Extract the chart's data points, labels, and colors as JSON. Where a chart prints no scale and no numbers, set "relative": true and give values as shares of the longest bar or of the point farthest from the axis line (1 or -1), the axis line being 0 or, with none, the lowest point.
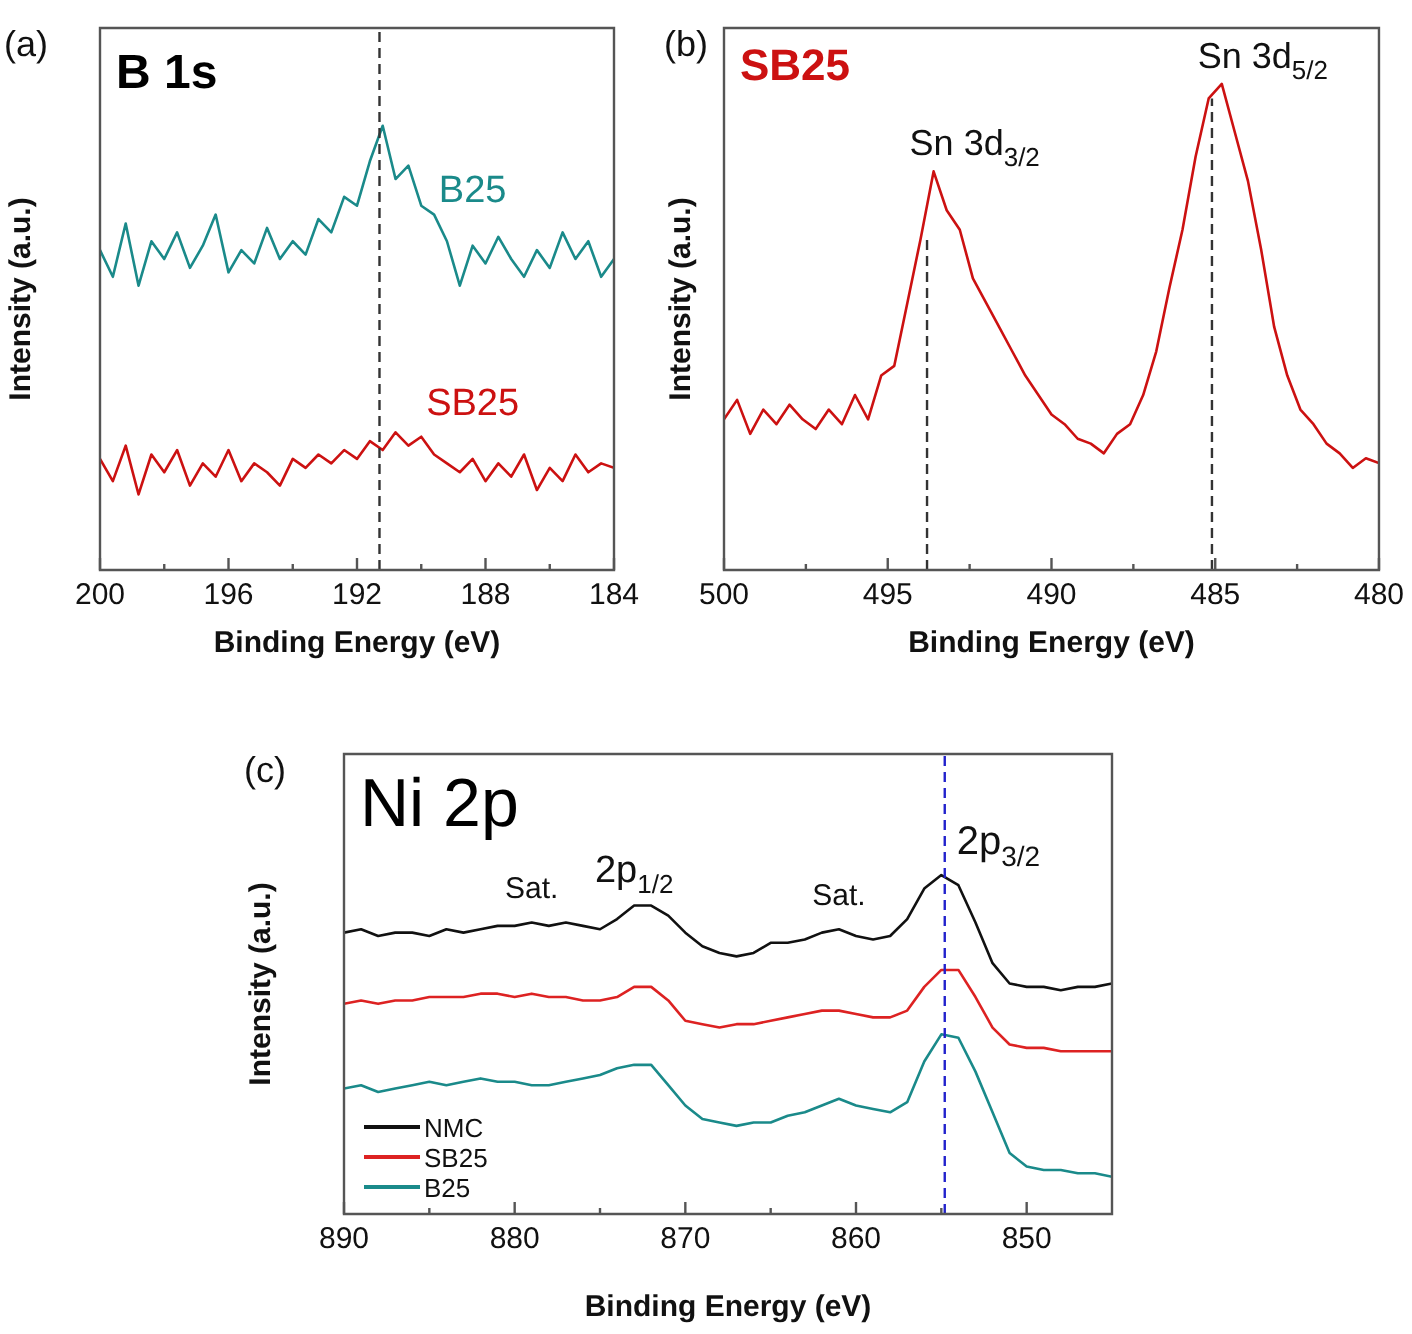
{
  "chart_data": [
    {
      "type": "line",
      "relative": true,
      "title": "B 1s",
      "xlabel": "Binding Energy (eV)",
      "ylabel": "Intensity (a.u.)",
      "annotations": [
        "(a)"
      ],
      "x": [
        200,
        199.6,
        199.2,
        198.8,
        198.4,
        198,
        197.6,
        197.2,
        196.8,
        196.4,
        196,
        195.6,
        195.2,
        194.8,
        194.4,
        194,
        193.6,
        193.2,
        192.8,
        192.4,
        192,
        191.6,
        191.2,
        190.8,
        190.4,
        190,
        189.6,
        189.2,
        188.8,
        188.4,
        188,
        187.6,
        187.2,
        186.8,
        186.4,
        186,
        185.6,
        185.2,
        184.8,
        184.4,
        184
      ],
      "series": [
        {
          "name": "B25",
          "color": "#1a8a8a",
          "values": [
            0.72,
            0.66,
            0.78,
            0.64,
            0.74,
            0.7,
            0.76,
            0.68,
            0.73,
            0.8,
            0.67,
            0.72,
            0.69,
            0.77,
            0.7,
            0.74,
            0.71,
            0.79,
            0.76,
            0.84,
            0.82,
            0.92,
            1.0,
            0.88,
            0.91,
            0.82,
            0.8,
            0.74,
            0.64,
            0.73,
            0.69,
            0.75,
            0.7,
            0.66,
            0.72,
            0.68,
            0.76,
            0.7,
            0.74,
            0.66,
            0.7
          ]
        },
        {
          "name": "SB25",
          "color": "#cc1111",
          "values": [
            0.25,
            0.2,
            0.28,
            0.17,
            0.26,
            0.22,
            0.27,
            0.19,
            0.24,
            0.21,
            0.27,
            0.2,
            0.24,
            0.22,
            0.19,
            0.25,
            0.23,
            0.26,
            0.24,
            0.27,
            0.25,
            0.29,
            0.27,
            0.31,
            0.28,
            0.3,
            0.26,
            0.24,
            0.22,
            0.25,
            0.2,
            0.24,
            0.21,
            0.26,
            0.18,
            0.23,
            0.2,
            0.26,
            0.22,
            0.24,
            0.23
          ]
        }
      ],
      "xlim": [
        200,
        184
      ],
      "xticks": [
        200,
        {
          "value": 198,
          "label": null
        },
        196,
        {
          "value": 194,
          "label": null
        },
        192,
        {
          "value": 190,
          "label": null
        },
        188,
        {
          "value": 186,
          "label": null
        },
        184
      ],
      "ref_lines": [
        {
          "axis": "x",
          "value": 191.3,
          "color": "#333333",
          "line_style": "dashed"
        }
      ]
    },
    {
      "type": "line",
      "relative": true,
      "title": "SB25",
      "xlabel": "Binding Energy (eV)",
      "ylabel": "Intensity (a.u.)",
      "annotations": [
        "(b)",
        {
          "text": "Sn 3d$_{3/2}$",
          "x": 493.6,
          "y": 0.82
        },
        {
          "text": "Sn 3d$_{5/2}$",
          "x": 484.8,
          "y": 1.0
        }
      ],
      "x": [
        500,
        499.6,
        499.2,
        498.8,
        498.4,
        498,
        497.6,
        497.2,
        496.8,
        496.4,
        496,
        495.6,
        495.2,
        494.8,
        494.4,
        494,
        493.6,
        493.2,
        492.8,
        492.4,
        492,
        491.6,
        491.2,
        490.8,
        490.4,
        490,
        489.6,
        489.2,
        488.8,
        488.4,
        488,
        487.6,
        487.2,
        486.8,
        486.4,
        486,
        485.6,
        485.2,
        484.8,
        484.4,
        484,
        483.6,
        483.2,
        482.8,
        482.4,
        482,
        481.6,
        481.2,
        480.8,
        480.4,
        480
      ],
      "series": [
        {
          "color": "#cc1111",
          "values": [
            0.31,
            0.35,
            0.28,
            0.33,
            0.3,
            0.34,
            0.31,
            0.29,
            0.33,
            0.3,
            0.36,
            0.31,
            0.4,
            0.42,
            0.55,
            0.68,
            0.82,
            0.74,
            0.7,
            0.6,
            0.55,
            0.5,
            0.45,
            0.4,
            0.36,
            0.32,
            0.3,
            0.27,
            0.26,
            0.24,
            0.28,
            0.3,
            0.36,
            0.45,
            0.58,
            0.7,
            0.85,
            0.97,
            1.0,
            0.9,
            0.8,
            0.66,
            0.5,
            0.4,
            0.33,
            0.3,
            0.26,
            0.24,
            0.21,
            0.23,
            0.22
          ]
        }
      ],
      "xlim": [
        500,
        480
      ],
      "xticks": [
        500,
        {
          "value": 497.5,
          "label": null
        },
        495,
        {
          "value": 492.5,
          "label": null
        },
        490,
        {
          "value": 487.5,
          "label": null
        },
        485,
        {
          "value": 482.5,
          "label": null
        },
        480
      ],
      "ref_lines": [
        {
          "axis": "x",
          "value": 493.8,
          "color": "#333333",
          "line_style": "dashed"
        },
        {
          "axis": "x",
          "value": 485.1,
          "color": "#333333",
          "line_style": "dashed"
        }
      ]
    },
    {
      "type": "line",
      "relative": true,
      "title": "Ni 2p",
      "xlabel": "Binding Energy (eV)",
      "ylabel": "Intensity (a.u.)",
      "legend": "bottom left",
      "annotations": [
        "(c)",
        {
          "text": "Sat.",
          "x": 879,
          "y": 0.86
        },
        {
          "text": "2p$_{1/2}$",
          "x": 873,
          "y": 0.91
        },
        {
          "text": "Sat.",
          "x": 861,
          "y": 0.84
        }
      ],
      "x": [
        890,
        889,
        888,
        887,
        886,
        885,
        884,
        883,
        882,
        881,
        880,
        879,
        878,
        877,
        876,
        875,
        874,
        873,
        872,
        871,
        870,
        869,
        868,
        867,
        866,
        865,
        864,
        863,
        862,
        861,
        860,
        859,
        858,
        857,
        856,
        855,
        854,
        853,
        852,
        851,
        850,
        849,
        848,
        847,
        846,
        845
      ],
      "series": [
        {
          "name": "NMC",
          "color": "#111111",
          "values": [
            0.83,
            0.84,
            0.82,
            0.83,
            0.83,
            0.82,
            0.84,
            0.83,
            0.84,
            0.85,
            0.85,
            0.86,
            0.85,
            0.86,
            0.85,
            0.84,
            0.87,
            0.91,
            0.91,
            0.88,
            0.83,
            0.79,
            0.77,
            0.76,
            0.77,
            0.8,
            0.8,
            0.81,
            0.83,
            0.84,
            0.82,
            0.81,
            0.82,
            0.87,
            0.96,
            1.0,
            0.97,
            0.86,
            0.74,
            0.68,
            0.67,
            0.67,
            0.66,
            0.67,
            0.67,
            0.68
          ]
        },
        {
          "name": "SB25",
          "color": "#dd2222",
          "values": [
            0.62,
            0.63,
            0.62,
            0.63,
            0.63,
            0.64,
            0.64,
            0.64,
            0.65,
            0.65,
            0.64,
            0.65,
            0.64,
            0.64,
            0.63,
            0.63,
            0.64,
            0.67,
            0.67,
            0.63,
            0.57,
            0.56,
            0.55,
            0.56,
            0.56,
            0.57,
            0.58,
            0.59,
            0.6,
            0.6,
            0.59,
            0.58,
            0.58,
            0.6,
            0.67,
            0.72,
            0.72,
            0.64,
            0.55,
            0.5,
            0.49,
            0.49,
            0.48,
            0.48,
            0.48,
            0.48
          ]
        },
        {
          "name": "B25",
          "color": "#1a8a8a",
          "values": [
            0.37,
            0.38,
            0.36,
            0.37,
            0.38,
            0.39,
            0.38,
            0.39,
            0.4,
            0.39,
            0.39,
            0.38,
            0.38,
            0.39,
            0.4,
            0.41,
            0.43,
            0.44,
            0.44,
            0.38,
            0.32,
            0.28,
            0.27,
            0.26,
            0.27,
            0.27,
            0.29,
            0.3,
            0.32,
            0.34,
            0.32,
            0.31,
            0.3,
            0.33,
            0.45,
            0.53,
            0.52,
            0.42,
            0.3,
            0.18,
            0.14,
            0.13,
            0.13,
            0.12,
            0.12,
            0.11
          ]
        }
      ],
      "xlim": [
        890,
        845
      ],
      "xticks": [
        890,
        {
          "value": 885,
          "label": null
        },
        880,
        {
          "value": 875,
          "label": null
        },
        870,
        {
          "value": 865,
          "label": null
        },
        860,
        {
          "value": 855,
          "label": null
        },
        850
      ],
      "ref_lines": [
        {
          "axis": "x",
          "value": 854.8,
          "label": "2p$_{3/2}$",
          "color": "#2222cc",
          "line_style": "dashed"
        }
      ]
    }
  ]
}
